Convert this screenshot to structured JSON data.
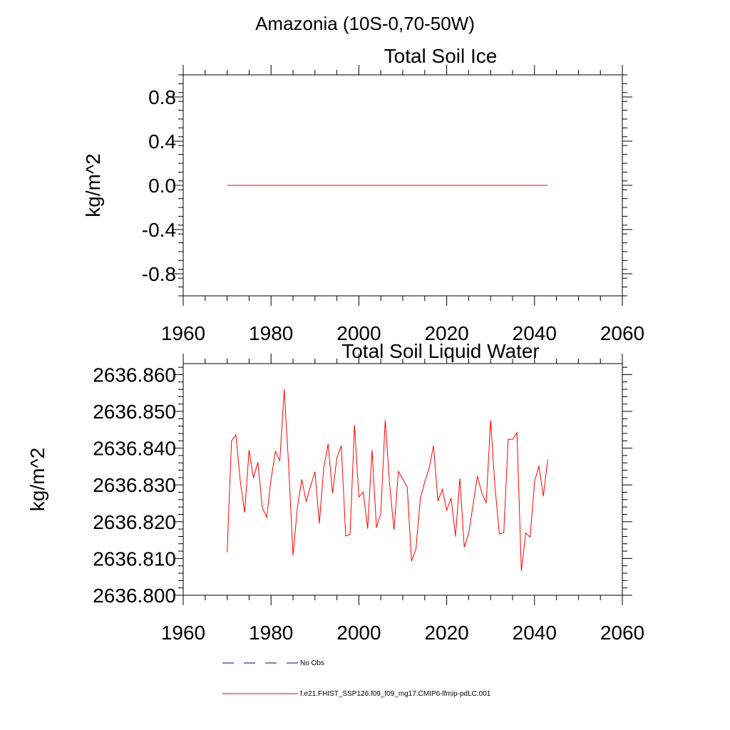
{
  "figure": {
    "main_title": "Amazonia (10S-0,70-50W)"
  },
  "colors": {
    "series": "#ff0000",
    "obs": "#000080",
    "axis": "#000000"
  },
  "chart_data": [
    {
      "type": "line",
      "title": "Total Soil Ice",
      "xlabel": "",
      "ylabel": "kg/m^2",
      "xlim": [
        1960,
        2060
      ],
      "ylim": [
        -1.0,
        1.0
      ],
      "xticks": [
        1960,
        1980,
        2000,
        2020,
        2040,
        2060
      ],
      "xtick_labels": [
        "1960",
        "1980",
        "2000",
        "2020",
        "2040",
        "2060"
      ],
      "yticks": [
        -0.8,
        -0.4,
        0.0,
        0.4,
        0.8
      ],
      "ytick_labels": [
        "-0.8",
        "-0.4",
        "0.0",
        "0.4",
        "0.8"
      ],
      "series": [
        {
          "name": "f.e21.FHIST_SSP126.f09_f09_mg17.CMIP6-lfmip-pdLC.001",
          "x": [
            1970,
            1971,
            1972,
            1973,
            1974,
            1975,
            1976,
            1977,
            1978,
            1979,
            1980,
            1981,
            1982,
            1983,
            1984,
            1985,
            1986,
            1987,
            1988,
            1989,
            1990,
            1991,
            1992,
            1993,
            1994,
            1995,
            1996,
            1997,
            1998,
            1999,
            2000,
            2001,
            2002,
            2003,
            2004,
            2005,
            2006,
            2007,
            2008,
            2009,
            2010,
            2011,
            2012,
            2013,
            2014,
            2015,
            2016,
            2017,
            2018,
            2019,
            2020,
            2021,
            2022,
            2023,
            2024,
            2025,
            2026,
            2027,
            2028,
            2029,
            2030,
            2031,
            2032,
            2033,
            2034,
            2035,
            2036,
            2037,
            2038,
            2039,
            2040,
            2041,
            2042,
            2043
          ],
          "values": [
            0,
            0,
            0,
            0,
            0,
            0,
            0,
            0,
            0,
            0,
            0,
            0,
            0,
            0,
            0,
            0,
            0,
            0,
            0,
            0,
            0,
            0,
            0,
            0,
            0,
            0,
            0,
            0,
            0,
            0,
            0,
            0,
            0,
            0,
            0,
            0,
            0,
            0,
            0,
            0,
            0,
            0,
            0,
            0,
            0,
            0,
            0,
            0,
            0,
            0,
            0,
            0,
            0,
            0,
            0,
            0,
            0,
            0,
            0,
            0,
            0,
            0,
            0,
            0,
            0,
            0,
            0,
            0,
            0,
            0,
            0,
            0,
            0,
            0
          ]
        }
      ]
    },
    {
      "type": "line",
      "title": "Total Soil Liquid Water",
      "xlabel": "",
      "ylabel": "kg/m^2",
      "xlim": [
        1960,
        2060
      ],
      "ylim": [
        2636.8,
        2636.863
      ],
      "xticks": [
        1960,
        1980,
        2000,
        2020,
        2040,
        2060
      ],
      "xtick_labels": [
        "1960",
        "1980",
        "2000",
        "2020",
        "2040",
        "2060"
      ],
      "yticks": [
        2636.8,
        2636.81,
        2636.82,
        2636.83,
        2636.84,
        2636.85,
        2636.86
      ],
      "ytick_labels": [
        "2636.800",
        "2636.810",
        "2636.820",
        "2636.830",
        "2636.840",
        "2636.850",
        "2636.860"
      ],
      "series": [
        {
          "name": "f.e21.FHIST_SSP126.f09_f09_mg17.CMIP6-lfmip-pdLC.001",
          "x": [
            1970,
            1971,
            1972,
            1973,
            1974,
            1975,
            1976,
            1977,
            1978,
            1979,
            1980,
            1981,
            1982,
            1983,
            1984,
            1985,
            1986,
            1987,
            1988,
            1989,
            1990,
            1991,
            1992,
            1993,
            1994,
            1995,
            1996,
            1997,
            1998,
            1999,
            2000,
            2001,
            2002,
            2003,
            2004,
            2005,
            2006,
            2007,
            2008,
            2009,
            2010,
            2011,
            2012,
            2013,
            2014,
            2015,
            2016,
            2017,
            2018,
            2019,
            2020,
            2021,
            2022,
            2023,
            2024,
            2025,
            2026,
            2027,
            2028,
            2029,
            2030,
            2031,
            2032,
            2033,
            2034,
            2035,
            2036,
            2037,
            2038,
            2039,
            2040,
            2041,
            2042,
            2043
          ],
          "values": [
            2636.8117,
            2636.842,
            2636.8436,
            2636.8309,
            2636.8225,
            2636.8395,
            2636.8319,
            2636.8362,
            2636.8239,
            2636.8212,
            2636.8316,
            2636.8391,
            2636.8366,
            2636.856,
            2636.8355,
            2636.8108,
            2636.8238,
            2636.8315,
            2636.8254,
            2636.8297,
            2636.8336,
            2636.8195,
            2636.8347,
            2636.8411,
            2636.8277,
            2636.8374,
            2636.8407,
            2636.8161,
            2636.8166,
            2636.8463,
            2636.8267,
            2636.8281,
            2636.8181,
            2636.8395,
            2636.8184,
            2636.8223,
            2636.8476,
            2636.8302,
            2636.8178,
            2636.8337,
            2636.8316,
            2636.8295,
            2636.8093,
            2636.8126,
            2636.8263,
            2636.8309,
            2636.8345,
            2636.8407,
            2636.8256,
            2636.8288,
            2636.8231,
            2636.8264,
            2636.816,
            2636.8318,
            2636.8131,
            2636.8168,
            2636.8246,
            2636.8324,
            2636.8278,
            2636.8251,
            2636.8476,
            2636.8294,
            2636.8166,
            2636.8171,
            2636.8424,
            2636.8424,
            2636.8442,
            2636.8066,
            2636.8169,
            2636.8158,
            2636.8309,
            2636.8352,
            2636.8269,
            2636.8369
          ]
        }
      ]
    }
  ],
  "legend": {
    "items": [
      {
        "label": "No Obs",
        "style": "dashed",
        "color": "#000080"
      },
      {
        "label": "f.e21.FHIST_SSP126.f09_f09_mg17.CMIP6-lfmip-pdLC.001",
        "style": "solid",
        "color": "#ff0000"
      }
    ]
  }
}
